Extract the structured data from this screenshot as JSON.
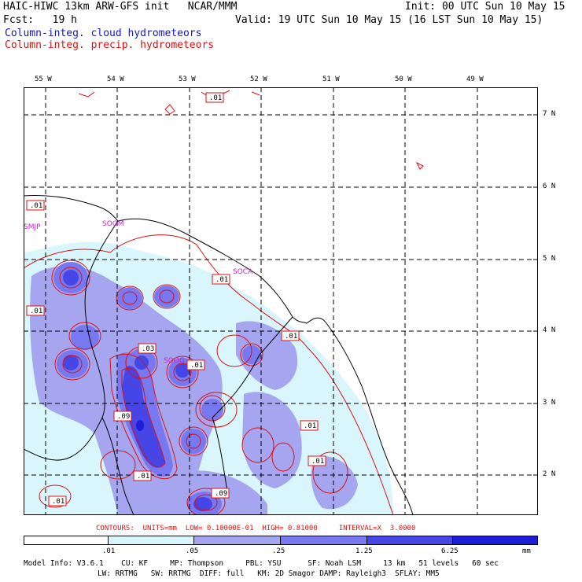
{
  "header": {
    "title": "HAIC-HIWC 13km ARW-GFS init   NCAR/MMM",
    "init": "Init: 00 UTC Sun 10 May 15",
    "fcst": "Fcst:   19 h",
    "valid": "Valid: 19 UTC Sun 10 May 15 (16 LST Sun 10 May 15)",
    "line_cloud": "Column-integ. cloud hydrometeors",
    "line_precip": "Column-integ. precip. hydrometeors"
  },
  "map": {
    "lon_labels": [
      "55 W",
      "54 W",
      "53 W",
      "52 W",
      "51 W",
      "50 W",
      "49 W"
    ],
    "lat_labels": [
      "7 N",
      "6 N",
      "5 N",
      "4 N",
      "3 N",
      "2 N"
    ],
    "stations": [
      "SMJP",
      "SOGM",
      "SOCA",
      "SOOG"
    ],
    "contour_labels": [
      ".01",
      ".01",
      ".01",
      ".01",
      ".01",
      ".03",
      ".01",
      ".09",
      ".01",
      ".01",
      ".01",
      ".09",
      ".01"
    ],
    "colors": {
      "c1": "#d8f6fc",
      "c2": "#a6a6f0",
      "c3": "#7878f0",
      "c4": "#4646e6",
      "c5": "#1e1ed8",
      "line": "#dd1111",
      "coast": "#000000",
      "grid": "#000000"
    }
  },
  "contours_line": "CONTOURS:  UNITS=mm  LOW= 0.10000E-01  HIGH= 0.81000     INTERVAL=X  3.0000",
  "color_key": {
    "labels": [
      ".01",
      ".05",
      ".25",
      "1.25",
      "6.25",
      "mm"
    ],
    "colors": [
      "#ffffff",
      "#d8f6fc",
      "#a6a6f0",
      "#7878f0",
      "#4646e6",
      "#1e1ed8"
    ]
  },
  "model_info": {
    "line1": "Model Info: V3.6.1    CU: KF     MP: Thompson     PBL: YSU      SF: Noah LSM     13 km   51 levels   60 sec",
    "line2": "LW: RRTMG   SW: RRTMG  DIFF: full   KM: 2D Smagor DAMP: Rayleigh3  SFLAY: MM5"
  }
}
